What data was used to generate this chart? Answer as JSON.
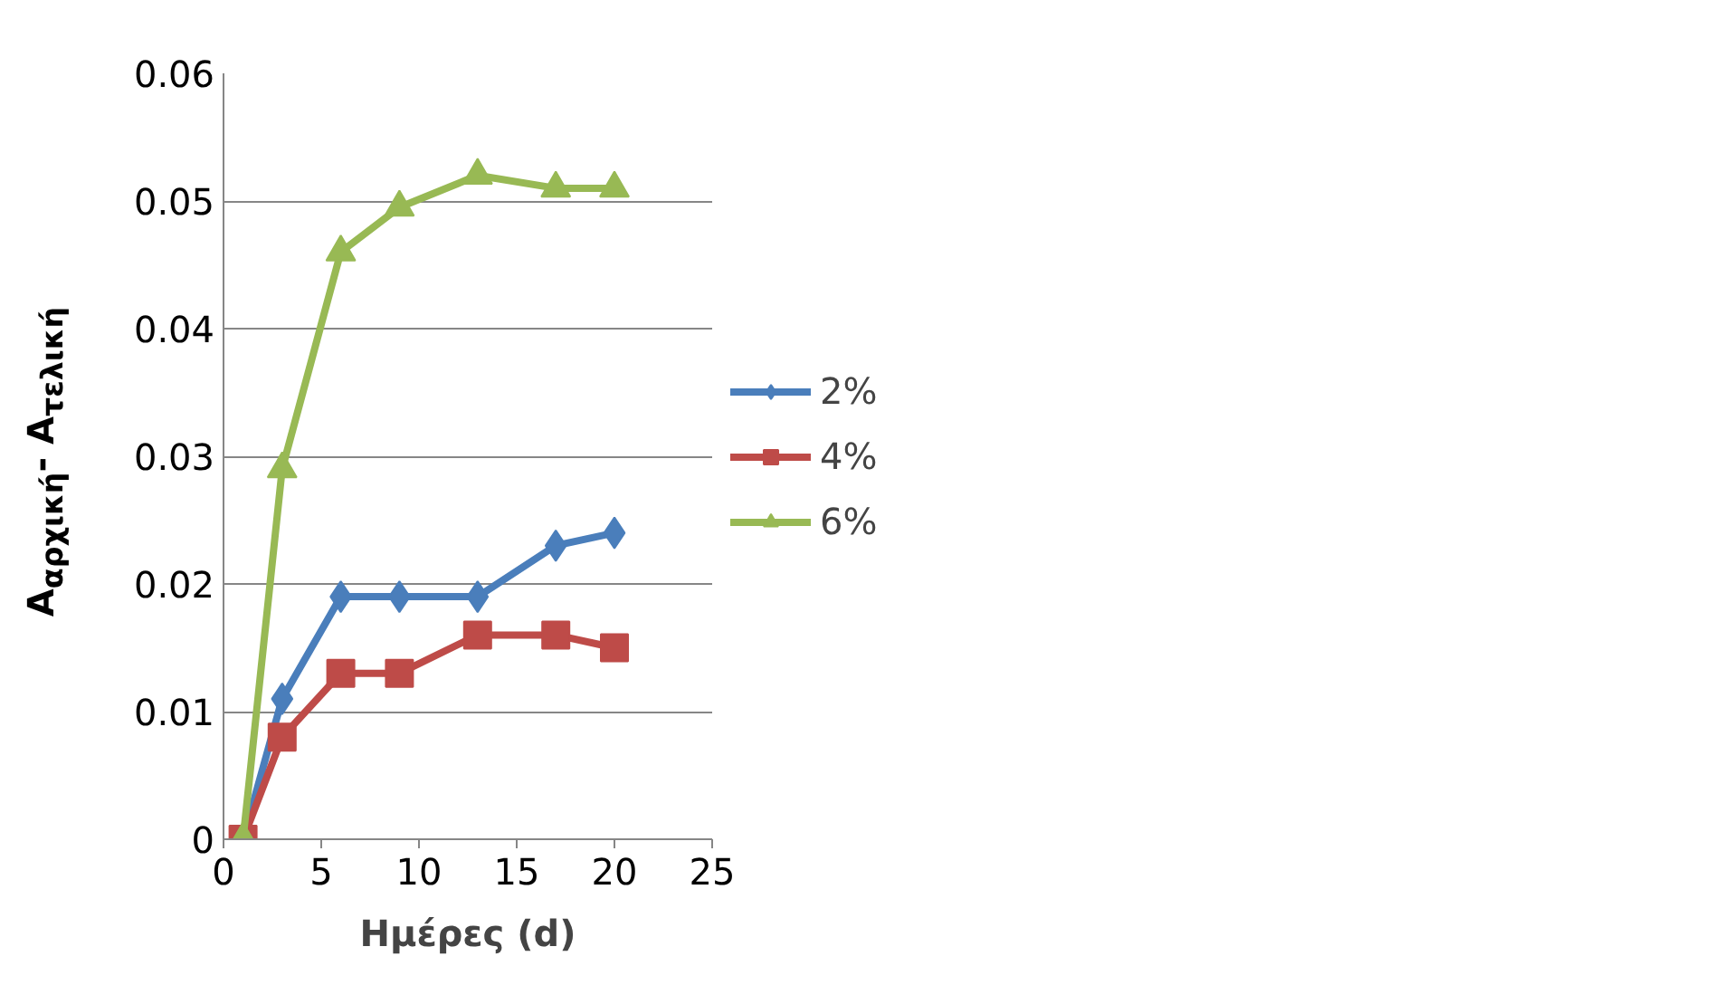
{
  "chart_data": {
    "type": "line",
    "xlabel": "Ημέρες (d)",
    "ylabel": "A$_{αρχική}$- A$_{τελική}$",
    "x": [
      1,
      3,
      6,
      9,
      13,
      17,
      20
    ],
    "xlim": [
      0,
      25
    ],
    "xticks": [
      0,
      5,
      10,
      15,
      20,
      25
    ],
    "ylim": [
      0,
      0.06
    ],
    "yticks": [
      0,
      0.01,
      0.02,
      0.03,
      0.04,
      0.05,
      0.06
    ],
    "grid": "y",
    "legend": "right",
    "series": [
      {
        "name": "2%",
        "color": "#4a7ebb",
        "marker": "diamond",
        "values": [
          0,
          0.011,
          0.019,
          0.019,
          0.019,
          0.023,
          0.024
        ]
      },
      {
        "name": "4%",
        "color": "#be4b48",
        "marker": "square",
        "values": [
          0,
          0.008,
          0.013,
          0.013,
          0.016,
          0.016,
          0.015
        ]
      },
      {
        "name": "6%",
        "color": "#98b954",
        "marker": "triangle",
        "values": [
          0,
          0.029,
          0.046,
          0.0495,
          0.052,
          0.051,
          0.051
        ]
      }
    ]
  }
}
